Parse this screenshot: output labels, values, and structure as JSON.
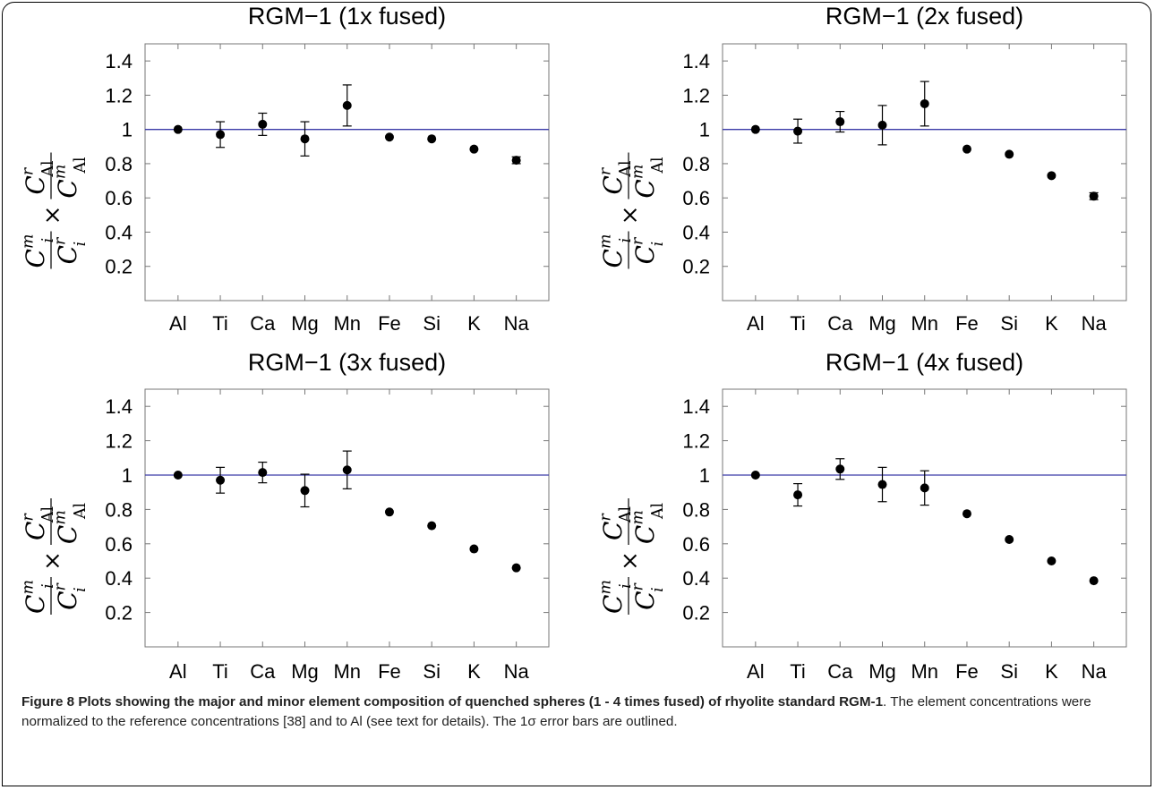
{
  "chart_data": [
    {
      "type": "scatter",
      "title": "RGM−1 (1x fused)",
      "categories": [
        "Al",
        "Ti",
        "Ca",
        "Mg",
        "Mn",
        "Fe",
        "Si",
        "K",
        "Na"
      ],
      "values": [
        1.0,
        0.97,
        1.03,
        0.945,
        1.14,
        0.955,
        0.945,
        0.885,
        0.82
      ],
      "errors": [
        0,
        0.075,
        0.065,
        0.1,
        0.12,
        0,
        0,
        0,
        0.02
      ],
      "ylabel": "C_i^m / C_i^r × C_Al^r / C_Al^m",
      "yticks": [
        "0.2",
        "0.4",
        "0.6",
        "0.8",
        "1",
        "1.2",
        "1.4"
      ],
      "ylim": [
        0.0,
        1.5
      ],
      "reference_line": 1.0,
      "grid": false
    },
    {
      "type": "scatter",
      "title": "RGM−1 (2x fused)",
      "categories": [
        "Al",
        "Ti",
        "Ca",
        "Mg",
        "Mn",
        "Fe",
        "Si",
        "K",
        "Na"
      ],
      "values": [
        1.0,
        0.99,
        1.045,
        1.025,
        1.15,
        0.885,
        0.855,
        0.73,
        0.61
      ],
      "errors": [
        0,
        0.07,
        0.06,
        0.115,
        0.13,
        0,
        0,
        0,
        0.02
      ],
      "ylabel": "C_i^m / C_i^r × C_Al^r / C_Al^m",
      "yticks": [
        "0.2",
        "0.4",
        "0.6",
        "0.8",
        "1",
        "1.2",
        "1.4"
      ],
      "ylim": [
        0.0,
        1.5
      ],
      "reference_line": 1.0,
      "grid": false
    },
    {
      "type": "scatter",
      "title": "RGM−1 (3x fused)",
      "categories": [
        "Al",
        "Ti",
        "Ca",
        "Mg",
        "Mn",
        "Fe",
        "Si",
        "K",
        "Na"
      ],
      "values": [
        1.0,
        0.97,
        1.015,
        0.91,
        1.03,
        0.785,
        0.705,
        0.57,
        0.46
      ],
      "errors": [
        0,
        0.075,
        0.06,
        0.095,
        0.11,
        0,
        0,
        0,
        0
      ],
      "ylabel": "C_i^m / C_i^r × C_Al^r / C_Al^m",
      "yticks": [
        "0.2",
        "0.4",
        "0.6",
        "0.8",
        "1",
        "1.2",
        "1.4"
      ],
      "ylim": [
        0.0,
        1.5
      ],
      "reference_line": 1.0,
      "grid": false
    },
    {
      "type": "scatter",
      "title": "RGM−1 (4x fused)",
      "categories": [
        "Al",
        "Ti",
        "Ca",
        "Mg",
        "Mn",
        "Fe",
        "Si",
        "K",
        "Na"
      ],
      "values": [
        1.0,
        0.885,
        1.035,
        0.945,
        0.925,
        0.775,
        0.625,
        0.5,
        0.385
      ],
      "errors": [
        0,
        0.065,
        0.06,
        0.1,
        0.1,
        0,
        0,
        0,
        0
      ],
      "ylabel": "C_i^m / C_i^r × C_Al^r / C_Al^m",
      "yticks": [
        "0.2",
        "0.4",
        "0.6",
        "0.8",
        "1",
        "1.2",
        "1.4"
      ],
      "ylim": [
        0.0,
        1.5
      ],
      "reference_line": 1.0,
      "grid": false
    }
  ],
  "style": {
    "line_color": "#3b3ba8",
    "point_color": "#000000"
  },
  "caption": {
    "label": "Figure 8",
    "bold_text": "Plots showing the major and minor element composition of quenched spheres (1 - 4 times fused) of rhyolite standard RGM-1",
    "rest_text": ". The element concentrations were normalized to the reference concentrations [38] and to Al (see text for details). The 1σ error bars are outlined."
  }
}
